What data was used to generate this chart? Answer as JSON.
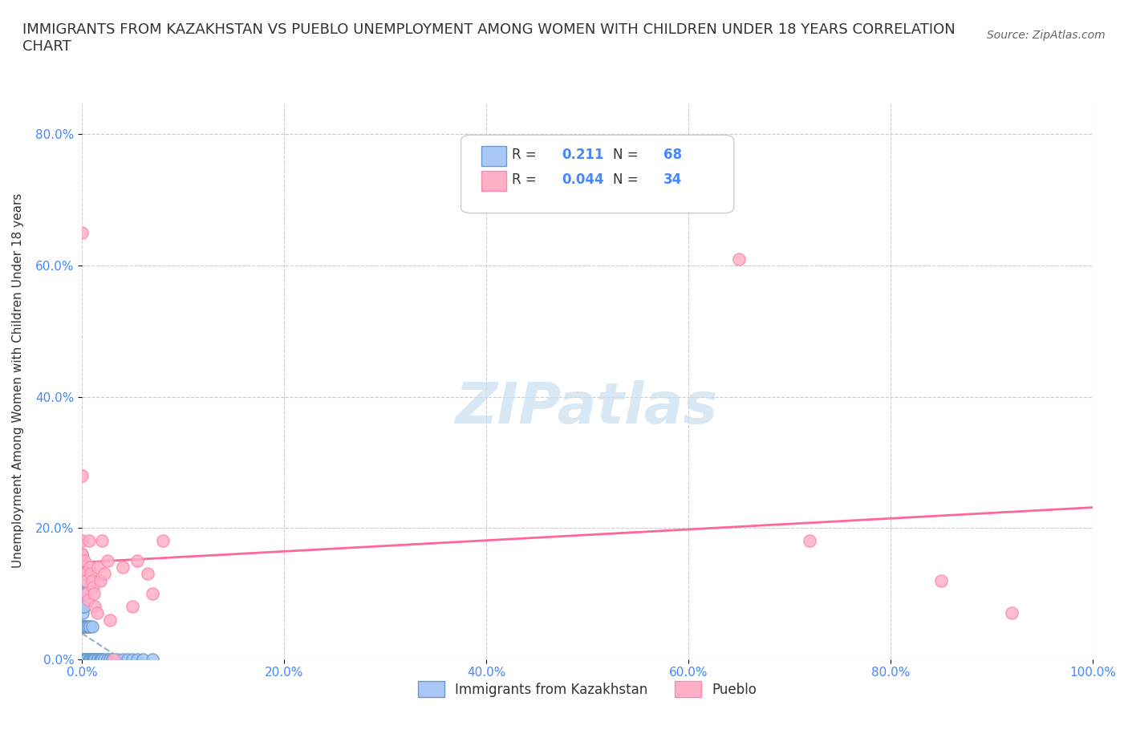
{
  "title": "IMMIGRANTS FROM KAZAKHSTAN VS PUEBLO UNEMPLOYMENT AMONG WOMEN WITH CHILDREN UNDER 18 YEARS CORRELATION\nCHART",
  "source_text": "Source: ZipAtlas.com",
  "xlabel": "",
  "ylabel": "Unemployment Among Women with Children Under 18 years",
  "xlim": [
    0.0,
    1.0
  ],
  "ylim": [
    0.0,
    0.85
  ],
  "xtick_labels": [
    "0.0%",
    "20.0%",
    "40.0%",
    "60.0%",
    "80.0%",
    "100.0%"
  ],
  "xtick_values": [
    0.0,
    0.2,
    0.4,
    0.6,
    0.8,
    1.0
  ],
  "ytick_labels": [
    "0.0%",
    "20.0%",
    "40.0%",
    "60.0%",
    "80.0%"
  ],
  "ytick_values": [
    0.0,
    0.2,
    0.4,
    0.6,
    0.8
  ],
  "R_kaz": 0.211,
  "N_kaz": 68,
  "R_pueblo": 0.044,
  "N_pueblo": 34,
  "kaz_color": "#a8c8f8",
  "pueblo_color": "#ffb0c8",
  "kaz_line_color": "#6699cc",
  "pueblo_line_color": "#ff6699",
  "trend_line_color": "#aaaaaa",
  "watermark_text": "ZIPatlas",
  "watermark_color": "#c8dff0",
  "legend_R_color": "#4488ff",
  "legend_N_color": "#4488ff",
  "kaz_scatter_x": [
    0.0,
    0.0,
    0.0,
    0.0,
    0.0,
    0.0,
    0.0,
    0.0,
    0.0,
    0.0,
    0.0,
    0.0,
    0.0,
    0.0,
    0.0,
    0.0,
    0.0,
    0.0,
    0.0,
    0.0,
    0.0,
    0.0,
    0.0,
    0.0,
    0.0,
    0.0,
    0.0,
    0.001,
    0.001,
    0.001,
    0.001,
    0.001,
    0.001,
    0.002,
    0.002,
    0.002,
    0.003,
    0.003,
    0.004,
    0.004,
    0.005,
    0.005,
    0.006,
    0.007,
    0.008,
    0.008,
    0.009,
    0.01,
    0.01,
    0.011,
    0.012,
    0.013,
    0.015,
    0.016,
    0.018,
    0.019,
    0.02,
    0.022,
    0.025,
    0.028,
    0.03,
    0.035,
    0.04,
    0.045,
    0.05,
    0.055,
    0.06,
    0.07
  ],
  "kaz_scatter_y": [
    0.0,
    0.0,
    0.0,
    0.0,
    0.0,
    0.0,
    0.0,
    0.0,
    0.0,
    0.0,
    0.0,
    0.0,
    0.0,
    0.0,
    0.0,
    0.05,
    0.05,
    0.08,
    0.08,
    0.1,
    0.1,
    0.1,
    0.12,
    0.13,
    0.14,
    0.15,
    0.16,
    0.0,
    0.0,
    0.05,
    0.07,
    0.08,
    0.1,
    0.0,
    0.05,
    0.08,
    0.0,
    0.05,
    0.0,
    0.05,
    0.0,
    0.05,
    0.05,
    0.0,
    0.0,
    0.05,
    0.0,
    0.0,
    0.05,
    0.0,
    0.0,
    0.0,
    0.0,
    0.0,
    0.0,
    0.0,
    0.0,
    0.0,
    0.0,
    0.0,
    0.0,
    0.0,
    0.0,
    0.0,
    0.0,
    0.0,
    0.0,
    0.0
  ],
  "pueblo_scatter_x": [
    0.0,
    0.0,
    0.0,
    0.0,
    0.002,
    0.003,
    0.004,
    0.005,
    0.006,
    0.007,
    0.008,
    0.009,
    0.01,
    0.011,
    0.012,
    0.013,
    0.015,
    0.016,
    0.018,
    0.02,
    0.022,
    0.025,
    0.028,
    0.032,
    0.04,
    0.05,
    0.055,
    0.065,
    0.07,
    0.08,
    0.65,
    0.72,
    0.85,
    0.92
  ],
  "pueblo_scatter_y": [
    0.65,
    0.28,
    0.18,
    0.16,
    0.15,
    0.13,
    0.12,
    0.1,
    0.09,
    0.18,
    0.14,
    0.13,
    0.12,
    0.11,
    0.1,
    0.08,
    0.07,
    0.14,
    0.12,
    0.18,
    0.13,
    0.15,
    0.06,
    0.0,
    0.14,
    0.08,
    0.15,
    0.13,
    0.1,
    0.18,
    0.61,
    0.18,
    0.12,
    0.07
  ]
}
